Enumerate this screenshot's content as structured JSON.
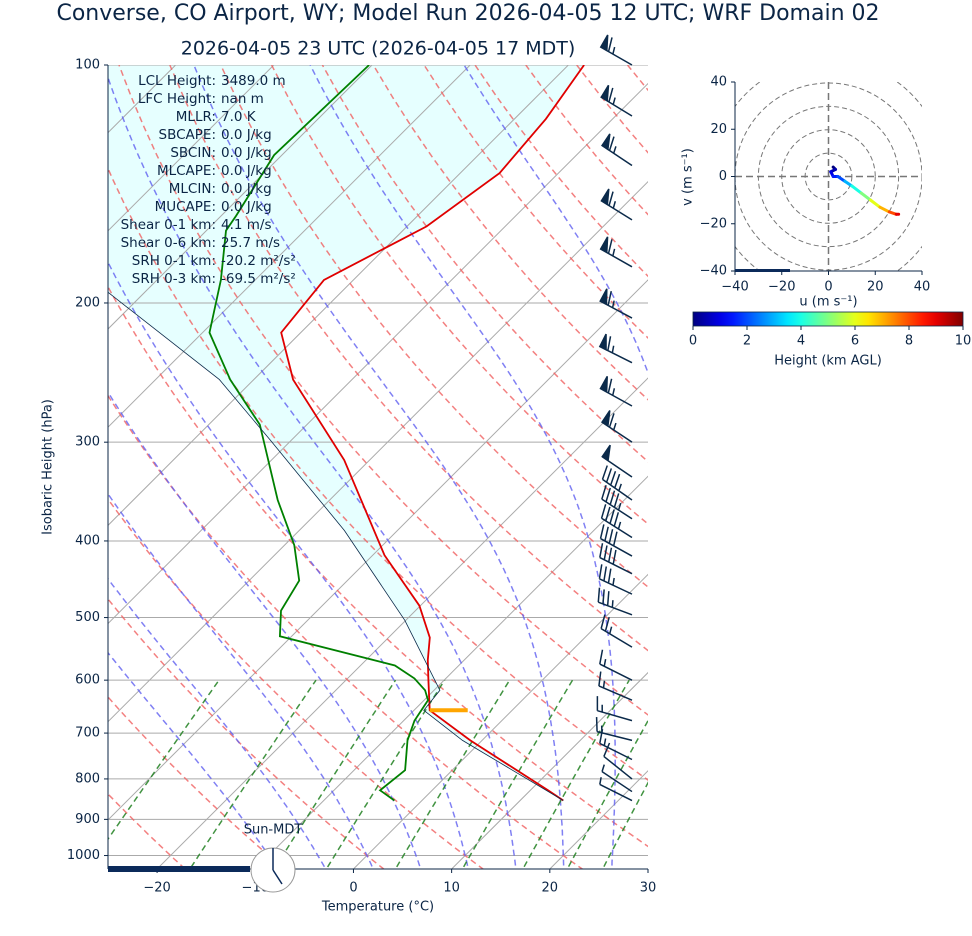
{
  "chart_data": [
    {
      "type": "skewt",
      "title": "Converse, CO Airport, WY; Model Run 2026-04-05 12 UTC; WRF Domain 02",
      "subtitle": "2026-04-05 23 UTC  (2026-04-05 17 MDT)",
      "xlabel": "Temperature (°C)",
      "ylabel": "Isobaric Height (hPa)",
      "xlim": [
        -25,
        30
      ],
      "ylim": [
        1040,
        100
      ],
      "xticks": [
        {
          "value": -20,
          "label": "−20"
        },
        {
          "value": -10,
          "label": "−10"
        },
        0,
        10,
        20,
        30
      ],
      "yticks": [
        100,
        200,
        300,
        400,
        500,
        600,
        700,
        800,
        900,
        1000
      ],
      "log_y": true,
      "skew": 1,
      "grid": true,
      "series": [
        {
          "color": "#e00000",
          "pressure": [
            852,
            827,
            715,
            655,
            600,
            566,
            530,
            483,
            417,
            316,
            250,
            218,
            187,
            160,
            137,
            117,
            100
          ],
          "temperature": [
            14.4,
            11.8,
            -1.2,
            -8.4,
            -11.6,
            -13.7,
            -15.8,
            -20.1,
            -28.8,
            -42.6,
            -56,
            -62,
            -63,
            -58,
            -56,
            -56.8,
            -58.4
          ]
        },
        {
          "color": "#008000",
          "pressure": [
            852,
            827,
            780,
            715,
            675,
            636,
            618,
            597,
            575,
            528,
            490,
            449,
            405,
            355,
            285,
            250,
            218,
            187,
            162,
            155,
            130,
            100
          ],
          "temperature": [
            -2.8,
            -5.3,
            -4.8,
            -7.6,
            -8.9,
            -9.6,
            -10.9,
            -13.2,
            -16.5,
            -31.2,
            -33.7,
            -34.9,
            -39,
            -45.3,
            -54.8,
            -62.4,
            -69.3,
            -73.5,
            -78,
            -78.5,
            -80.8,
            -80.3
          ]
        },
        {
          "color": "#0b2a4a",
          "pressure": [
            852,
            715,
            655,
            618,
            504,
            388,
            298,
            250,
            193
          ],
          "temperature": [
            14.4,
            -2,
            -9,
            -9.4,
            -20.1,
            -35.4,
            -52.2,
            -63.5,
            -84.1
          ]
        }
      ],
      "lcl": {
        "pressure": 655,
        "color": "#ffa500"
      },
      "barbs": {
        "color": "#0b2a4a",
        "pressure": [
          100,
          116,
          134,
          157,
          180,
          209,
          238,
          270,
          300,
          332,
          355,
          375,
          396,
          418,
          440,
          467,
          496,
          545,
          600,
          636,
          675,
          715,
          756,
          800,
          830,
          852
        ],
        "u": [
          28,
          28,
          27,
          29,
          30,
          30,
          30,
          29,
          27,
          22,
          20,
          20,
          19,
          18,
          18,
          17,
          16,
          10,
          8,
          7,
          7,
          8,
          6,
          5,
          3,
          2
        ],
        "v": [
          -16,
          -17,
          -18,
          -18,
          -17,
          -16,
          -15,
          -16,
          -18,
          -15,
          -14,
          -13,
          -12,
          -10,
          -9,
          -8,
          -6,
          -6,
          -4,
          -3,
          -2,
          -2,
          -3,
          -4,
          -2,
          -1
        ]
      },
      "stats": [
        {
          "label": "LCL Height:",
          "value": "3489.0 m"
        },
        {
          "label": "LFC Height:",
          "value": "nan m"
        },
        {
          "label": "MLLR:",
          "value": "7.0 K"
        },
        {
          "label": "SBCAPE:",
          "value": "0.0 J/kg"
        },
        {
          "label": "SBCIN:",
          "value": "0.0 J/kg"
        },
        {
          "label": "MLCAPE:",
          "value": "0.0 J/kg"
        },
        {
          "label": "MLCIN:",
          "value": "0.0 J/kg"
        },
        {
          "label": "MUCAPE:",
          "value": "0.0 J/kg"
        },
        {
          "label": "Shear 0-1 km:",
          "value": "4.1 m/s"
        },
        {
          "label": "Shear 0-6 km:",
          "value": "25.7 m/s"
        },
        {
          "label": "SRH 0-1 km:",
          "value": "-20.2 m²/s²"
        },
        {
          "label": "SRH 0-3 km:",
          "value": "-69.5 m²/s²"
        }
      ],
      "clock_label": "Sun-MDT"
    },
    {
      "type": "hodograph",
      "xlabel": "u (m s⁻¹)",
      "ylabel": "v (m s⁻¹)",
      "xlim": [
        -40,
        40
      ],
      "ylim": [
        -40,
        40
      ],
      "xticks": [
        {
          "value": -40,
          "label": "−40"
        },
        {
          "value": -20,
          "label": "−20"
        },
        0,
        20,
        40
      ],
      "yticks": [
        {
          "value": -40,
          "label": "−40"
        },
        {
          "value": -20,
          "label": "−20"
        },
        0,
        20,
        40
      ],
      "u": [
        2,
        3,
        1,
        2,
        4,
        7,
        10,
        14,
        18,
        22,
        26,
        29,
        30
      ],
      "v": [
        4,
        3,
        2,
        0,
        0,
        -2,
        -4,
        -7,
        -10,
        -13,
        -15,
        -16,
        -16
      ],
      "height": [
        0,
        0.5,
        1,
        1.5,
        2,
        3,
        4,
        5,
        6,
        7,
        8,
        9,
        10
      ],
      "colormap": "jet",
      "clim": [
        0,
        10
      ],
      "cticks": [
        0,
        2,
        4,
        6,
        8,
        10
      ],
      "clabel": "Height (km AGL)"
    }
  ]
}
